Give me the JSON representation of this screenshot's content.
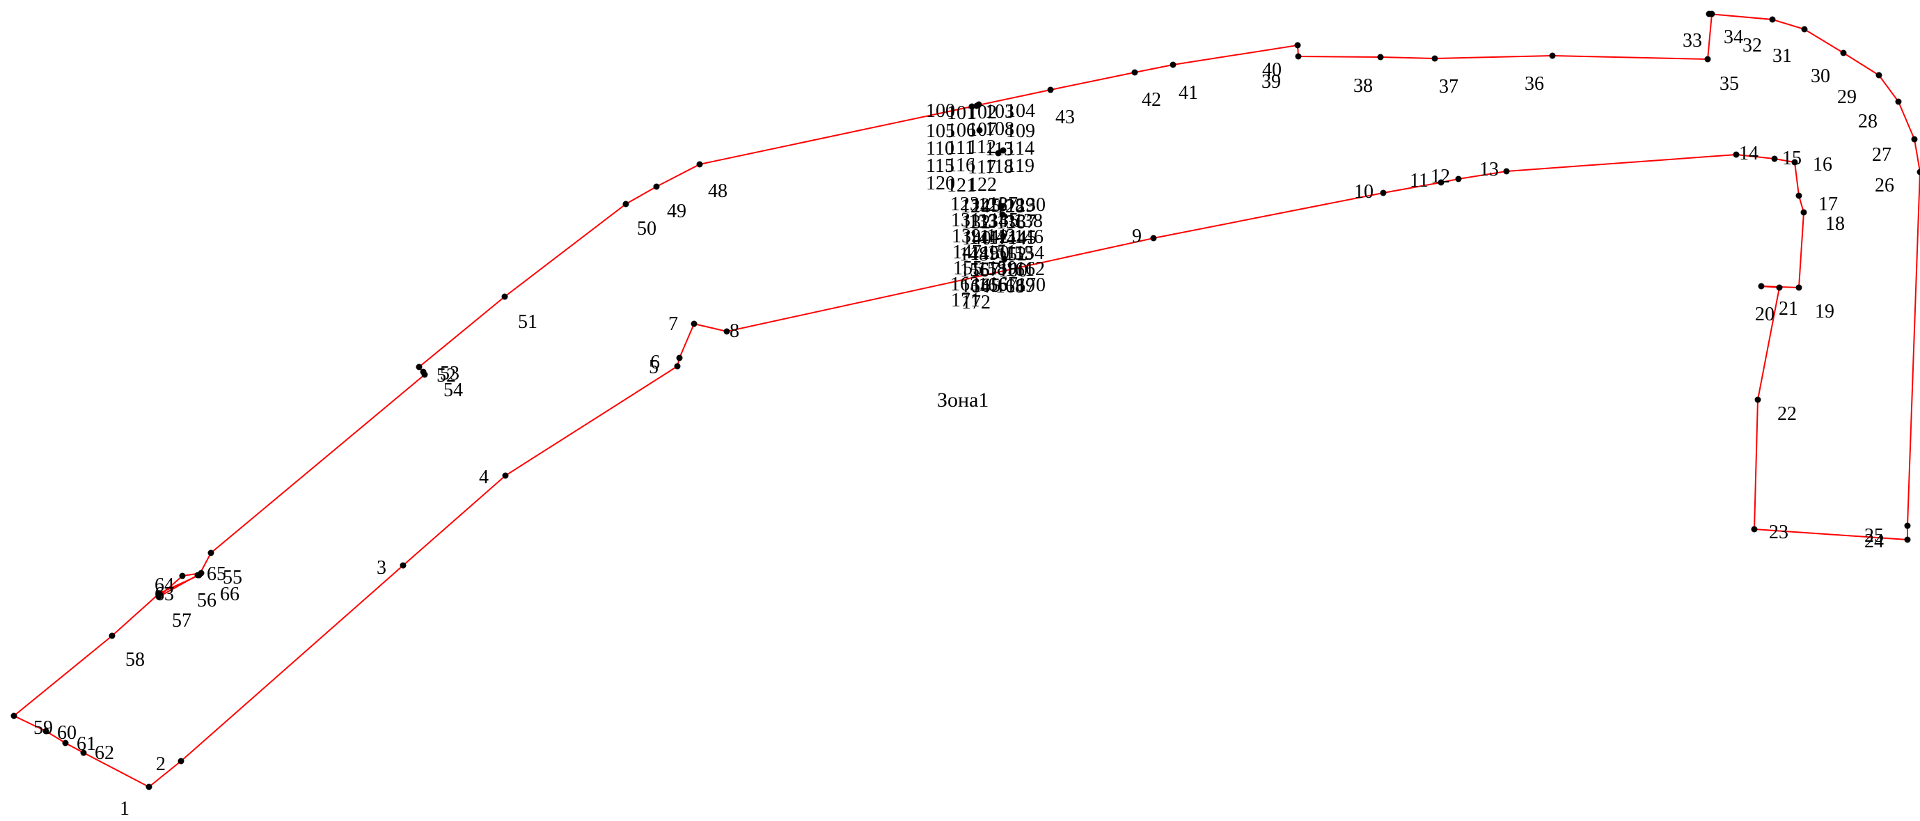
{
  "zone_label": "Зона1",
  "colors": {
    "boundary": "#ff0000",
    "vertex": "#000000",
    "background": "#ffffff"
  },
  "outer_ring": [
    "1",
    "2",
    "3",
    "4",
    "5",
    "6",
    "7",
    "8",
    "9",
    "10",
    "11",
    "12",
    "13",
    "14",
    "15",
    "16",
    "17",
    "18",
    "19",
    "20",
    "21",
    "22",
    "23",
    "24",
    "25",
    "26",
    "27",
    "28",
    "29",
    "30",
    "31",
    "32",
    "33",
    "34",
    "35",
    "36",
    "37",
    "38",
    "39",
    "40",
    "41",
    "42",
    "43",
    "48",
    "49",
    "50",
    "51",
    "52",
    "53",
    "54",
    "55",
    "56",
    "57",
    "58",
    "59",
    "60",
    "61",
    "62"
  ],
  "inner_ring_a": [
    "63",
    "64",
    "65",
    "66"
  ],
  "vertex_labels": [
    "1",
    "2",
    "3",
    "4",
    "5",
    "6",
    "7",
    "8",
    "9",
    "10",
    "11",
    "12",
    "13",
    "14",
    "15",
    "16",
    "17",
    "18",
    "19",
    "20",
    "21",
    "22",
    "23",
    "24",
    "25",
    "26",
    "27",
    "28",
    "29",
    "30",
    "31",
    "32",
    "33",
    "34",
    "35",
    "36",
    "37",
    "38",
    "39",
    "40",
    "41",
    "42",
    "43",
    "48",
    "49",
    "50",
    "51",
    "52",
    "53",
    "54",
    "55",
    "56",
    "57",
    "58",
    "59",
    "60",
    "61",
    "62",
    "63",
    "64",
    "65",
    "66"
  ],
  "cluster_labels_upper": [
    "100",
    "101",
    "102",
    "103",
    "104",
    "105",
    "106",
    "107",
    "108",
    "109",
    "110",
    "111",
    "112",
    "113",
    "114",
    "115",
    "116",
    "117",
    "118",
    "119",
    "120",
    "121",
    "122"
  ],
  "cluster_labels_lower": [
    "123",
    "124",
    "125",
    "126",
    "127",
    "128",
    "129",
    "130",
    "131",
    "132",
    "133",
    "134",
    "135",
    "136",
    "137",
    "138",
    "139",
    "140",
    "141",
    "142",
    "143",
    "144",
    "145",
    "146",
    "147",
    "148",
    "149",
    "150",
    "151",
    "152",
    "153",
    "154",
    "155",
    "156",
    "157",
    "158",
    "159",
    "160",
    "161",
    "162",
    "163",
    "164",
    "165",
    "166",
    "167",
    "168",
    "169",
    "170",
    "171",
    "172"
  ]
}
